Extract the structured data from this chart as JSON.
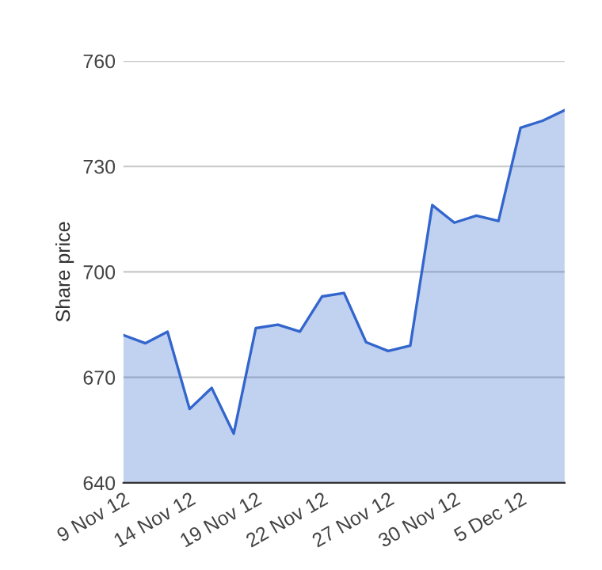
{
  "chart_data": {
    "type": "area",
    "ylabel": "Share price",
    "categories": [
      "9 Nov 12",
      null,
      null,
      "14 Nov 12",
      null,
      null,
      "19 Nov 12",
      null,
      null,
      "22 Nov 12",
      null,
      null,
      "27 Nov 12",
      null,
      null,
      "30 Nov 12",
      null,
      null,
      "5 Dec 12",
      null,
      null
    ],
    "series": [
      {
        "color": "#3366cc",
        "values": [
          682,
          679.7,
          683,
          661,
          667,
          654,
          684,
          685,
          683,
          693,
          694,
          680,
          677.5,
          679,
          719,
          714,
          716,
          714.5,
          741,
          743,
          746
        ]
      }
    ],
    "ylim": [
      640,
      760
    ],
    "yticks": [
      640,
      670,
      700,
      730,
      760
    ],
    "grid": "y",
    "legend": false,
    "marker": "none",
    "line_style": "solid"
  }
}
